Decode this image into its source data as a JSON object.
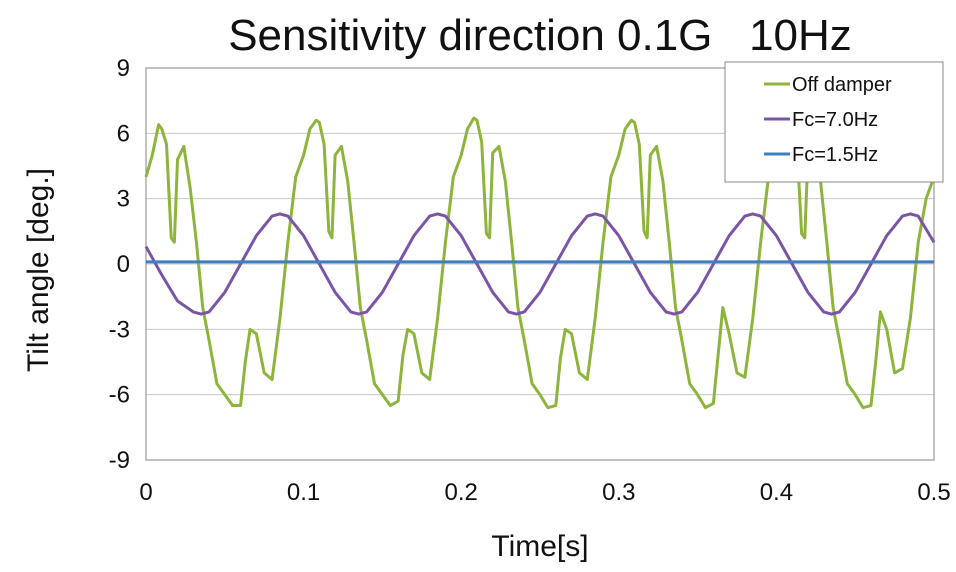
{
  "chart_data": {
    "type": "line",
    "title": "Sensitivity direction 0.1G   10Hz",
    "xlabel": "Time[s]",
    "ylabel": "Tilt angle [deg.]",
    "xlim": [
      0,
      0.5
    ],
    "ylim": [
      -9,
      9
    ],
    "xticks": [
      0,
      0.1,
      0.2,
      0.3,
      0.4,
      0.5
    ],
    "xtick_labels": [
      "0",
      "0.1",
      "0.2",
      "0.3",
      "0.4",
      "0.5"
    ],
    "yticks": [
      9,
      6,
      3,
      0,
      -3,
      -6,
      -9
    ],
    "ytick_labels": [
      "9",
      "6",
      "3",
      "0",
      "-3",
      "-6",
      "-9"
    ],
    "grid": "horizontal",
    "legend_position": "top-right",
    "series": [
      {
        "name": "Off damper",
        "color": "#8db53c",
        "x": [
          0,
          0.004,
          0.008,
          0.01,
          0.013,
          0.016,
          0.018,
          0.02,
          0.024,
          0.028,
          0.032,
          0.036,
          0.04,
          0.045,
          0.05,
          0.055,
          0.06,
          0.063,
          0.066,
          0.07,
          0.075,
          0.08,
          0.085,
          0.09,
          0.095,
          0.1,
          0.104,
          0.108,
          0.11,
          0.113,
          0.116,
          0.118,
          0.12,
          0.124,
          0.128,
          0.132,
          0.136,
          0.14,
          0.145,
          0.15,
          0.155,
          0.16,
          0.163,
          0.166,
          0.17,
          0.175,
          0.18,
          0.185,
          0.19,
          0.195,
          0.2,
          0.204,
          0.208,
          0.21,
          0.213,
          0.216,
          0.218,
          0.22,
          0.224,
          0.228,
          0.232,
          0.236,
          0.24,
          0.245,
          0.25,
          0.255,
          0.26,
          0.263,
          0.266,
          0.27,
          0.275,
          0.28,
          0.285,
          0.29,
          0.295,
          0.3,
          0.304,
          0.308,
          0.31,
          0.313,
          0.316,
          0.318,
          0.32,
          0.324,
          0.328,
          0.332,
          0.336,
          0.34,
          0.345,
          0.35,
          0.355,
          0.36,
          0.363,
          0.366,
          0.37,
          0.375,
          0.38,
          0.385,
          0.39,
          0.395,
          0.4,
          0.404,
          0.408,
          0.41,
          0.413,
          0.416,
          0.418,
          0.42,
          0.424,
          0.428,
          0.432,
          0.436,
          0.44,
          0.445,
          0.45,
          0.455,
          0.46,
          0.463,
          0.466,
          0.47,
          0.475,
          0.48,
          0.485,
          0.49,
          0.495,
          0.5
        ],
        "y": [
          4,
          5,
          6.4,
          6.2,
          5.5,
          1.2,
          1.0,
          4.8,
          5.4,
          3.5,
          1.0,
          -2.0,
          -3.5,
          -5.5,
          -6.0,
          -6.5,
          -6.5,
          -4.5,
          -3.0,
          -3.2,
          -5.0,
          -5.3,
          -2.5,
          1.0,
          4.0,
          5.0,
          6.2,
          6.6,
          6.5,
          5.5,
          1.5,
          1.2,
          5.0,
          5.4,
          3.8,
          1.0,
          -2.0,
          -3.5,
          -5.5,
          -6.0,
          -6.5,
          -6.3,
          -4.2,
          -3.0,
          -3.2,
          -5.0,
          -5.3,
          -2.5,
          1.0,
          4.0,
          5.0,
          6.2,
          6.7,
          6.6,
          5.6,
          1.4,
          1.2,
          5.1,
          5.4,
          3.8,
          1.0,
          -2.0,
          -3.5,
          -5.5,
          -6.0,
          -6.6,
          -6.5,
          -4.3,
          -3.0,
          -3.2,
          -5.0,
          -5.3,
          -2.5,
          1.0,
          4.0,
          5.0,
          6.2,
          6.6,
          6.5,
          5.5,
          1.5,
          1.2,
          5.0,
          5.4,
          3.8,
          1.0,
          -2.0,
          -3.5,
          -5.5,
          -6.0,
          -6.6,
          -6.4,
          -4.2,
          -2.0,
          -3.2,
          -5.0,
          -5.2,
          -2.5,
          1.0,
          4.0,
          5.0,
          6.2,
          6.5,
          6.4,
          5.5,
          1.4,
          1.2,
          5.0,
          5.4,
          3.8,
          1.0,
          -2.0,
          -3.5,
          -5.5,
          -6.0,
          -6.6,
          -6.5,
          -4.5,
          -2.2,
          -3.0,
          -5.0,
          -4.8,
          -2.5,
          1.0,
          3.0,
          4.0
        ]
      },
      {
        "name": "Fc=7.0Hz",
        "color": "#7b54a8",
        "x": [
          0,
          0.01,
          0.02,
          0.03,
          0.035,
          0.04,
          0.05,
          0.06,
          0.07,
          0.08,
          0.085,
          0.09,
          0.1,
          0.11,
          0.12,
          0.13,
          0.135,
          0.14,
          0.15,
          0.16,
          0.17,
          0.18,
          0.185,
          0.19,
          0.2,
          0.21,
          0.22,
          0.23,
          0.235,
          0.24,
          0.25,
          0.26,
          0.27,
          0.28,
          0.285,
          0.29,
          0.3,
          0.31,
          0.32,
          0.33,
          0.335,
          0.34,
          0.35,
          0.36,
          0.37,
          0.38,
          0.385,
          0.39,
          0.4,
          0.41,
          0.42,
          0.43,
          0.435,
          0.44,
          0.45,
          0.46,
          0.47,
          0.48,
          0.485,
          0.49,
          0.5
        ],
        "y": [
          0.8,
          -0.5,
          -1.7,
          -2.2,
          -2.3,
          -2.2,
          -1.3,
          0.0,
          1.3,
          2.2,
          2.3,
          2.2,
          1.3,
          0.0,
          -1.3,
          -2.2,
          -2.3,
          -2.2,
          -1.3,
          0.0,
          1.3,
          2.2,
          2.3,
          2.2,
          1.3,
          0.0,
          -1.3,
          -2.2,
          -2.3,
          -2.2,
          -1.3,
          0.0,
          1.3,
          2.2,
          2.3,
          2.2,
          1.3,
          0.0,
          -1.3,
          -2.2,
          -2.3,
          -2.2,
          -1.3,
          0.0,
          1.3,
          2.2,
          2.3,
          2.2,
          1.3,
          0.0,
          -1.3,
          -2.2,
          -2.3,
          -2.2,
          -1.3,
          0.0,
          1.3,
          2.2,
          2.3,
          2.2,
          1.0
        ]
      },
      {
        "name": "Fc=1.5Hz",
        "color": "#3f7fbf",
        "x": [
          0,
          0.5
        ],
        "y": [
          0.1,
          0.1
        ]
      }
    ]
  }
}
